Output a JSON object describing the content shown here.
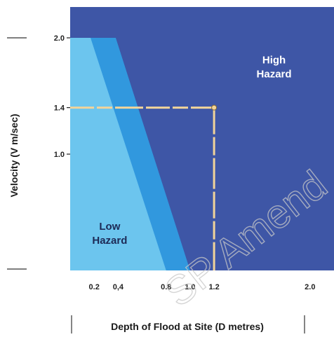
{
  "chart_data": {
    "type": "area",
    "xlabel": "Depth of Flood at Site (D metres)",
    "ylabel": "Velocity (V m/sec)",
    "xlim": [
      0,
      2.2
    ],
    "ylim": [
      0,
      2.0
    ],
    "x_ticks": [
      {
        "value": 0.2,
        "label": "0.2"
      },
      {
        "value": 0.4,
        "label": "0,4"
      },
      {
        "value": 0.8,
        "label": "0.8"
      },
      {
        "value": 1.0,
        "label": "1.0"
      },
      {
        "value": 1.2,
        "label": "1.2"
      },
      {
        "value": 2.0,
        "label": "2.0"
      }
    ],
    "y_ticks": [
      {
        "value": 2.0,
        "label": "2.0"
      },
      {
        "value": 1.4,
        "label": "1.4"
      },
      {
        "value": 1.0,
        "label": "1.0"
      }
    ],
    "zones": [
      {
        "key": "high",
        "label_lines": [
          "High",
          "Hazard"
        ],
        "color": "#3e56a6",
        "label_color": "#ffffff",
        "anchor": {
          "x": 1.7,
          "y": 1.78
        }
      },
      {
        "key": "intermediate",
        "label_lines": [],
        "color": "#3198de",
        "boundary": [
          [
            0.38,
            2.0
          ],
          [
            1.0,
            0.0
          ]
        ]
      },
      {
        "key": "low",
        "label_lines": [
          "Low",
          "Hazard"
        ],
        "color": "#6cc5ee",
        "label_color": "#1d2a56",
        "anchor": {
          "x": 0.33,
          "y": 0.35
        },
        "boundary": [
          [
            0.17,
            2.0
          ],
          [
            0.8,
            0.0
          ]
        ]
      }
    ],
    "example_point": {
      "x": 1.2,
      "y": 1.4,
      "color": "#f1d49a"
    },
    "watermark": "SP Amend",
    "grid": false
  }
}
